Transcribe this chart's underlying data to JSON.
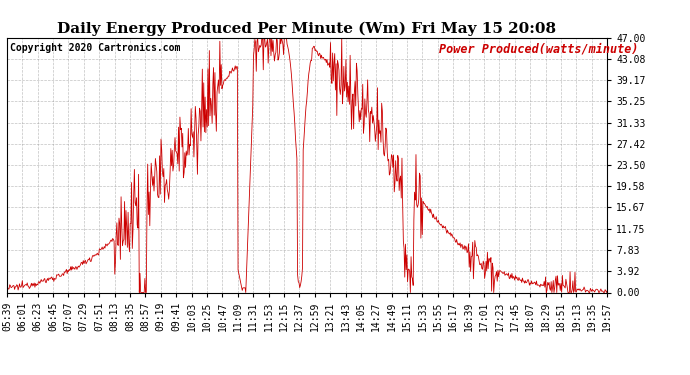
{
  "title": "Daily Energy Produced Per Minute (Wm) Fri May 15 20:08",
  "copyright": "Copyright 2020 Cartronics.com",
  "legend_label": "Power Produced(watts/minute)",
  "background_color": "#ffffff",
  "line_color": "#cc0000",
  "grid_color": "#999999",
  "yticks": [
    0.0,
    3.92,
    7.83,
    11.75,
    15.67,
    19.58,
    23.5,
    27.42,
    31.33,
    35.25,
    39.17,
    43.08,
    47.0
  ],
  "xtick_labels": [
    "05:39",
    "06:01",
    "06:23",
    "06:45",
    "07:07",
    "07:29",
    "07:51",
    "08:13",
    "08:35",
    "08:57",
    "09:19",
    "09:41",
    "10:03",
    "10:25",
    "10:47",
    "11:09",
    "11:31",
    "11:53",
    "12:15",
    "12:37",
    "12:59",
    "13:21",
    "13:43",
    "14:05",
    "14:27",
    "14:49",
    "15:11",
    "15:33",
    "15:55",
    "16:17",
    "16:39",
    "17:01",
    "17:23",
    "17:45",
    "18:07",
    "18:29",
    "18:51",
    "19:13",
    "19:35",
    "19:57"
  ],
  "ylim": [
    0.0,
    47.0
  ],
  "title_fontsize": 11,
  "copyright_fontsize": 7,
  "legend_fontsize": 8.5,
  "tick_fontsize": 7,
  "n_points": 858
}
